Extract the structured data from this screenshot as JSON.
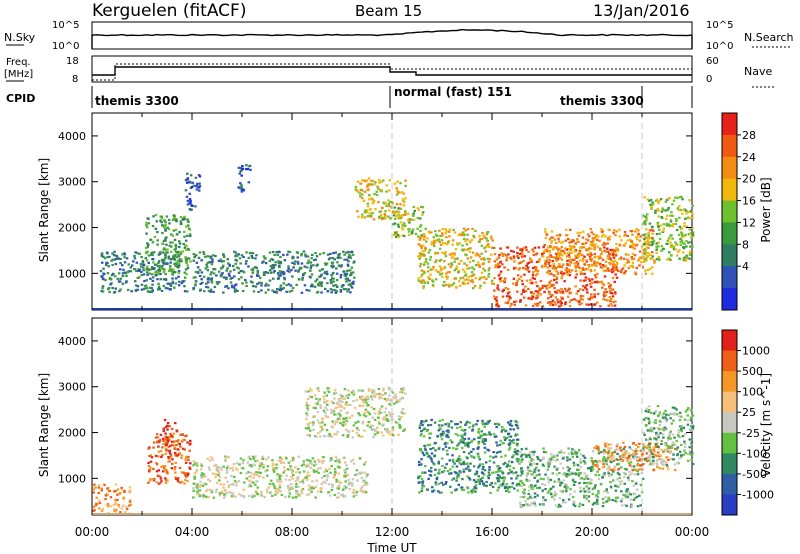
{
  "header": {
    "station": "Kerguelen (fitACF)",
    "beam": "Beam 15",
    "date": "13/Jan/2016"
  },
  "ops": {
    "nsky_label": "N.Sky",
    "nsearch_label": "N.Search",
    "nsky_ticks": [
      "10^5",
      "10^0"
    ],
    "nsearch_ticks": [
      "10^5",
      "10^0"
    ],
    "freq_label_1": "Freq.",
    "freq_label_2": "[MHz]",
    "freq_ticks": [
      "18",
      "8"
    ],
    "nave_label": "Nave",
    "nave_ticks": [
      "60",
      "0"
    ],
    "cpid_label": "CPID",
    "cpid_entries": [
      "themis 3300",
      "normal (fast) 151",
      "themis 3300"
    ]
  },
  "colors": {
    "bg": "#ffffff",
    "ground_line": "#1f3aa6",
    "guide": "#c8c8c8"
  },
  "chart_data": [
    {
      "type": "heatmap",
      "name": "power",
      "xlabel": "",
      "ylabel": "Slant Range [km]",
      "x_range_hours": [
        0,
        24
      ],
      "ylim": [
        200,
        4500
      ],
      "y_ticks": [
        "4000",
        "3000",
        "2000",
        "1000"
      ],
      "colorbar": {
        "label": "Power [dB]",
        "ticks": [
          "28",
          "24",
          "20",
          "16",
          "12",
          "8",
          "4"
        ],
        "colors": [
          "#1f2bdf",
          "#2e52b8",
          "#2f7e62",
          "#3b9a3d",
          "#6cc12c",
          "#f2b90c",
          "#f38d12",
          "#f25a14",
          "#e8221b"
        ]
      },
      "clusters": [
        {
          "t": [
            0.3,
            3.8
          ],
          "r": [
            600,
            1500
          ],
          "level": 2
        },
        {
          "t": [
            2.1,
            3.9
          ],
          "r": [
            1000,
            2300
          ],
          "level": 3
        },
        {
          "t": [
            3.7,
            4.3
          ],
          "r": [
            2400,
            3200
          ],
          "level": 1
        },
        {
          "t": [
            4.0,
            10.5
          ],
          "r": [
            600,
            1500
          ],
          "level": 2
        },
        {
          "t": [
            5.8,
            6.3
          ],
          "r": [
            2800,
            3400
          ],
          "level": 1
        },
        {
          "t": [
            10.5,
            12.5
          ],
          "r": [
            2200,
            3100
          ],
          "level": 5
        },
        {
          "t": [
            12.0,
            13.2
          ],
          "r": [
            1800,
            2500
          ],
          "level": 4
        },
        {
          "t": [
            13.0,
            16.0
          ],
          "r": [
            700,
            2000
          ],
          "level": 5
        },
        {
          "t": [
            16.0,
            21.0
          ],
          "r": [
            300,
            1600
          ],
          "level": 7
        },
        {
          "t": [
            18.0,
            22.5
          ],
          "r": [
            1000,
            2000
          ],
          "level": 6
        },
        {
          "t": [
            22.0,
            24.0
          ],
          "r": [
            1300,
            2700
          ],
          "level": 4
        }
      ]
    },
    {
      "type": "heatmap",
      "name": "velocity",
      "xlabel": "Time UT",
      "ylabel": "Slant Range [km]",
      "x_range_hours": [
        0,
        24
      ],
      "x_ticks": [
        "00:00",
        "04:00",
        "08:00",
        "12:00",
        "16:00",
        "20:00",
        "00:00"
      ],
      "ylim": [
        200,
        4500
      ],
      "y_ticks": [
        "4000",
        "3000",
        "2000",
        "1000"
      ],
      "colorbar": {
        "label": "Velocity [m s^-1]",
        "ticks": [
          "1000",
          "500",
          "100",
          "25",
          "-25",
          "-100",
          "-500",
          "-1000"
        ],
        "colors": [
          "#2a3dc2",
          "#2e5fa5",
          "#2f8a62",
          "#62c043",
          "#c8c8c0",
          "#f7c07a",
          "#f49724",
          "#f05f17",
          "#e0201a"
        ]
      },
      "clusters": [
        {
          "t": [
            0.0,
            1.5
          ],
          "r": [
            250,
            900
          ],
          "level": 6
        },
        {
          "t": [
            2.2,
            3.9
          ],
          "r": [
            900,
            2000
          ],
          "level": 7
        },
        {
          "t": [
            2.8,
            3.4
          ],
          "r": [
            1500,
            2300
          ],
          "level": 8
        },
        {
          "t": [
            4.0,
            11.0
          ],
          "r": [
            600,
            1500
          ],
          "level": 4
        },
        {
          "t": [
            8.5,
            12.5
          ],
          "r": [
            1900,
            3000
          ],
          "level": 4
        },
        {
          "t": [
            13.0,
            17.0
          ],
          "r": [
            700,
            2300
          ],
          "level": 2
        },
        {
          "t": [
            17.0,
            22.0
          ],
          "r": [
            400,
            1700
          ],
          "level": 3
        },
        {
          "t": [
            20.0,
            23.3
          ],
          "r": [
            1200,
            1800
          ],
          "level": 6
        },
        {
          "t": [
            22.0,
            24.0
          ],
          "r": [
            1300,
            2600
          ],
          "level": 3
        }
      ]
    }
  ]
}
